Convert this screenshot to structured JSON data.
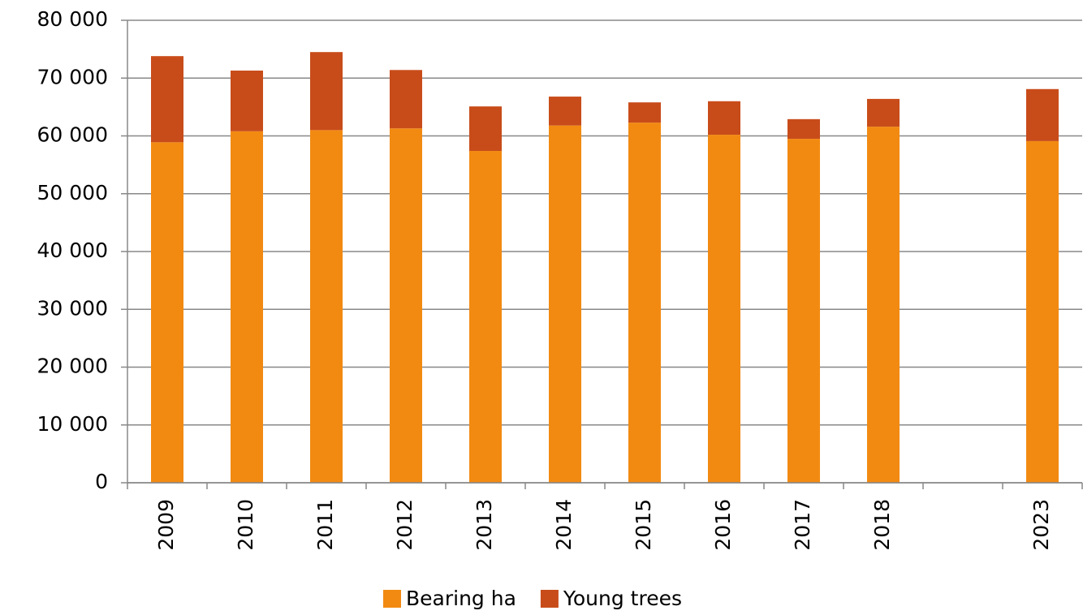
{
  "chart_data": {
    "type": "stacked_bar",
    "categories": [
      "2009",
      "2010",
      "2011",
      "2012",
      "2013",
      "2014",
      "2015",
      "2016",
      "2017",
      "2018",
      null,
      "2023"
    ],
    "series": [
      {
        "name": "Bearing ha",
        "color": "#f28a12",
        "values": [
          58900,
          60800,
          61000,
          61300,
          57400,
          61800,
          62300,
          60200,
          59500,
          61600,
          null,
          59100
        ]
      },
      {
        "name": "Young trees",
        "color": "#c84c1a",
        "values": [
          14900,
          10500,
          13500,
          10100,
          7700,
          5000,
          3500,
          5800,
          3400,
          4800,
          null,
          9000
        ]
      }
    ],
    "ylim": [
      0,
      80000
    ],
    "yticks": [
      0,
      {
        "value": 10000,
        "label": "10 000"
      },
      {
        "value": 20000,
        "label": "20 000"
      },
      {
        "value": 30000,
        "label": "30 000"
      },
      {
        "value": 40000,
        "label": "40 000"
      },
      {
        "value": 50000,
        "label": "50 000"
      },
      {
        "value": 60000,
        "label": "60 000"
      },
      {
        "value": 70000,
        "label": "70 000"
      },
      {
        "value": 80000,
        "label": "80 000"
      }
    ],
    "grid": true,
    "legend": "bottom"
  }
}
